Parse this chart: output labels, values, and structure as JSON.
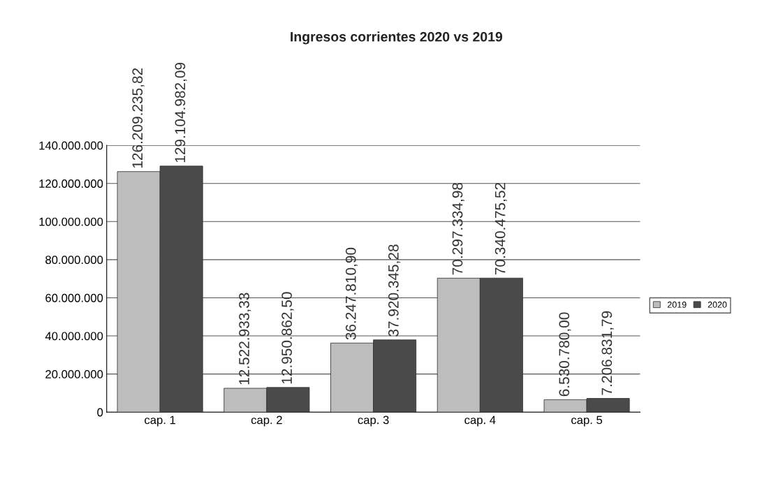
{
  "chart_data": {
    "type": "bar",
    "title": "Ingresos corrientes 2020 vs 2019",
    "categories": [
      "cap. 1",
      "cap. 2",
      "cap. 3",
      "cap. 4",
      "cap. 5"
    ],
    "series": [
      {
        "name": "2019",
        "color": "#bdbdbd",
        "values": [
          126209235.82,
          12522933.33,
          36247810.9,
          70297334.98,
          6530780.0
        ],
        "value_labels": [
          "126.209.235,82",
          "12.522.933,33",
          "36.247.810,90",
          "70.297.334,98",
          "6.530.780,00"
        ]
      },
      {
        "name": "2020",
        "color": "#4a4a4a",
        "values": [
          129104982.09,
          12950862.5,
          37920345.28,
          70340475.52,
          7206831.79
        ],
        "value_labels": [
          "129.104.982,09",
          "12.950.862,50",
          "37.920.345,28",
          "70.340.475,52",
          "7.206.831,79"
        ]
      }
    ],
    "ylim": [
      0,
      140000000
    ],
    "yticks": [
      {
        "value": 0,
        "label": "0"
      },
      {
        "value": 20000000,
        "label": "20.000.000"
      },
      {
        "value": 40000000,
        "label": "40.000.000"
      },
      {
        "value": 60000000,
        "label": "60.000.000"
      },
      {
        "value": 80000000,
        "label": "80.000.000"
      },
      {
        "value": 100000000,
        "label": "100.000.000"
      },
      {
        "value": 120000000,
        "label": "120.000.000"
      },
      {
        "value": 140000000,
        "label": "140.000.000"
      }
    ],
    "grid": "y",
    "legend": "right"
  }
}
